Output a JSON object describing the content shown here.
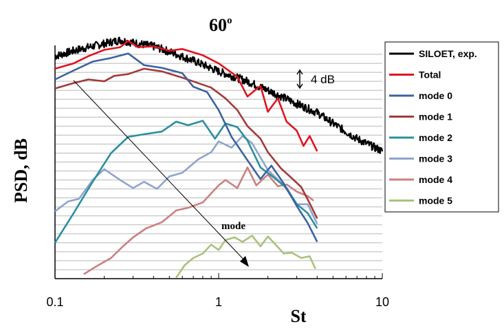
{
  "chart_data": {
    "type": "line",
    "title_main": "60",
    "title_sup": "o",
    "xlabel": "St",
    "ylabel": "PSD, dB",
    "xscale": "log",
    "xlim": [
      0.1,
      10
    ],
    "xticks": [
      "0.1",
      "1",
      "10"
    ],
    "ylim": [
      0,
      26
    ],
    "grid": "horizontal",
    "legend_position": "right",
    "scale_annotation": "4 dB",
    "arrow_label": "mode",
    "series": [
      {
        "name": "SILOET, exp.",
        "color": "#000000",
        "x": [
          0.1,
          0.13,
          0.16,
          0.2,
          0.25,
          0.3,
          0.4,
          0.5,
          0.7,
          1.0,
          1.5,
          2.0,
          3.0,
          4.0,
          5.0,
          7.0,
          10.0
        ],
        "y": [
          24.8,
          25.4,
          25.8,
          26.2,
          26.6,
          26.3,
          25.9,
          25.3,
          24.3,
          23.1,
          22.0,
          21.0,
          19.5,
          18.5,
          17.3,
          15.6,
          14.2
        ]
      },
      {
        "name": "Total",
        "color": "#e0141e",
        "x": [
          0.1,
          0.13,
          0.16,
          0.2,
          0.25,
          0.28,
          0.32,
          0.4,
          0.5,
          0.6,
          0.8,
          1.0,
          1.3,
          1.5,
          1.8,
          2.0,
          2.3,
          2.6,
          3.0,
          3.3,
          3.6,
          4.0
        ],
        "y": [
          23.4,
          24.0,
          24.8,
          25.5,
          25.8,
          26.5,
          25.8,
          25.9,
          25.4,
          25.6,
          24.9,
          24.0,
          22.5,
          20.3,
          21.5,
          18.6,
          20.1,
          17.5,
          16.5,
          14.8,
          15.9,
          14.2
        ]
      },
      {
        "name": "mode 0",
        "color": "#3b63a1",
        "x": [
          0.1,
          0.13,
          0.17,
          0.22,
          0.28,
          0.35,
          0.45,
          0.6,
          0.7,
          0.85,
          1.0,
          1.2,
          1.5,
          1.8,
          2.1,
          2.5,
          3.0,
          3.5,
          4.0
        ],
        "y": [
          22.2,
          23.2,
          24.2,
          24.6,
          25.1,
          23.8,
          23.5,
          22.9,
          21.4,
          20.8,
          18.8,
          15.8,
          13.2,
          11.1,
          12.6,
          10.6,
          8.1,
          6.2,
          4.1
        ]
      },
      {
        "name": "mode 1",
        "color": "#a33a3a",
        "x": [
          0.1,
          0.13,
          0.16,
          0.2,
          0.23,
          0.28,
          0.35,
          0.45,
          0.6,
          0.75,
          0.9,
          1.1,
          1.3,
          1.5,
          1.8,
          2.0,
          2.4,
          2.8,
          3.2,
          3.6,
          4.0
        ],
        "y": [
          21.2,
          21.8,
          22.2,
          22.0,
          22.6,
          22.8,
          23.4,
          23.1,
          22.4,
          21.8,
          21.3,
          20.1,
          18.8,
          17.0,
          15.6,
          14.1,
          12.3,
          11.2,
          10.2,
          8.4,
          6.7
        ]
      },
      {
        "name": "mode 2",
        "color": "#2a8f9f",
        "x": [
          0.1,
          0.13,
          0.17,
          0.22,
          0.28,
          0.35,
          0.45,
          0.55,
          0.65,
          0.8,
          0.95,
          1.1,
          1.3,
          1.5,
          1.8,
          2.2,
          2.6,
          3.0,
          3.5,
          4.0
        ],
        "y": [
          4.0,
          7.3,
          10.8,
          14.0,
          15.8,
          16.1,
          16.4,
          17.5,
          17.1,
          17.6,
          15.6,
          17.3,
          16.9,
          15.4,
          12.4,
          11.2,
          10.1,
          8.3,
          7.3,
          5.6
        ]
      },
      {
        "name": "mode 3",
        "color": "#8ea4cd",
        "x": [
          0.1,
          0.12,
          0.14,
          0.17,
          0.2,
          0.25,
          0.3,
          0.35,
          0.42,
          0.5,
          0.6,
          0.75,
          0.9,
          1.0,
          1.2,
          1.4,
          1.6,
          2.0,
          2.5,
          3.0,
          3.5,
          4.0
        ],
        "y": [
          7.5,
          8.6,
          8.9,
          11.0,
          12.2,
          11.0,
          10.1,
          10.8,
          10.0,
          11.4,
          11.8,
          13.3,
          14.1,
          15.3,
          14.6,
          15.9,
          15.1,
          12.1,
          10.4,
          8.3,
          8.3,
          6.1
        ]
      },
      {
        "name": "mode 4",
        "color": "#cc7f7f",
        "x": [
          0.15,
          0.18,
          0.22,
          0.26,
          0.3,
          0.36,
          0.45,
          0.55,
          0.65,
          0.8,
          1.0,
          1.1,
          1.3,
          1.5,
          1.7,
          2.0,
          2.3,
          2.6,
          3.0,
          3.5,
          3.8
        ],
        "y": [
          0.5,
          1.4,
          2.3,
          3.6,
          4.6,
          5.6,
          6.3,
          7.6,
          7.9,
          8.5,
          10.4,
          11.0,
          10.1,
          12.4,
          10.4,
          11.6,
          10.3,
          10.5,
          9.7,
          9.2,
          8.7
        ]
      },
      {
        "name": "mode 5",
        "color": "#a9c27b",
        "x": [
          0.55,
          0.62,
          0.7,
          0.8,
          0.9,
          1.0,
          1.1,
          1.25,
          1.4,
          1.6,
          1.8,
          2.0,
          2.2,
          2.5,
          2.8,
          3.2,
          3.6,
          3.9
        ],
        "y": [
          0.1,
          1.5,
          2.3,
          2.8,
          3.8,
          3.2,
          4.3,
          4.6,
          4.1,
          4.8,
          3.6,
          4.7,
          3.9,
          2.8,
          2.9,
          2.3,
          2.5,
          1.1
        ]
      }
    ]
  }
}
